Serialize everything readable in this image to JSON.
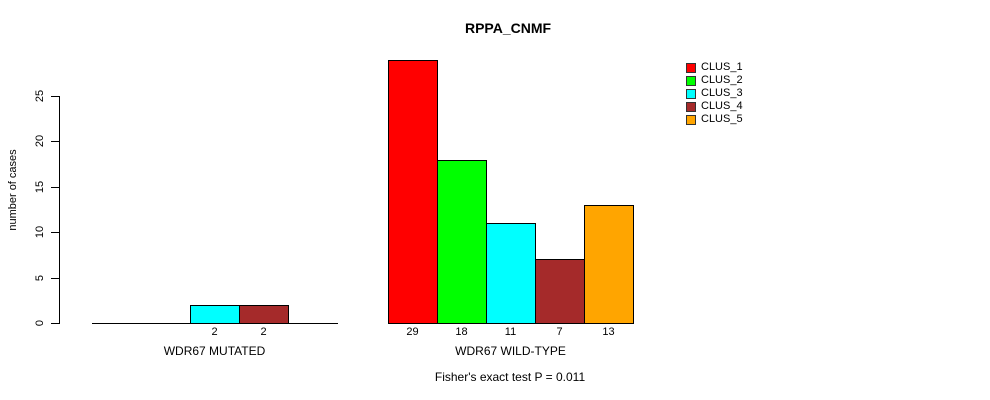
{
  "title": "RPPA_CNMF",
  "chart_data": {
    "type": "bar",
    "title": "RPPA_CNMF",
    "xlabel": "",
    "ylabel": "number of cases",
    "yticks": [
      0,
      5,
      10,
      15,
      20,
      25
    ],
    "ylim": [
      0,
      29
    ],
    "grid": false,
    "legend_position": "top-right",
    "series": [
      {
        "name": "CLUS_1",
        "color": "#ff0000"
      },
      {
        "name": "CLUS_2",
        "color": "#00ff00"
      },
      {
        "name": "CLUS_3",
        "color": "#00ffff"
      },
      {
        "name": "CLUS_4",
        "color": "#a52a2a"
      },
      {
        "name": "CLUS_5",
        "color": "#ffa500"
      }
    ],
    "groups": [
      {
        "label": "WDR67 MUTATED",
        "values": [
          0,
          0,
          2,
          2,
          0
        ],
        "bar_labels": [
          "",
          "",
          "2",
          "2",
          ""
        ]
      },
      {
        "label": "WDR67 WILD-TYPE",
        "values": [
          29,
          18,
          11,
          7,
          13
        ],
        "bar_labels": [
          "29",
          "18",
          "11",
          "7",
          "13"
        ]
      }
    ],
    "annotation": "Fisher's exact test P = 0.011"
  }
}
